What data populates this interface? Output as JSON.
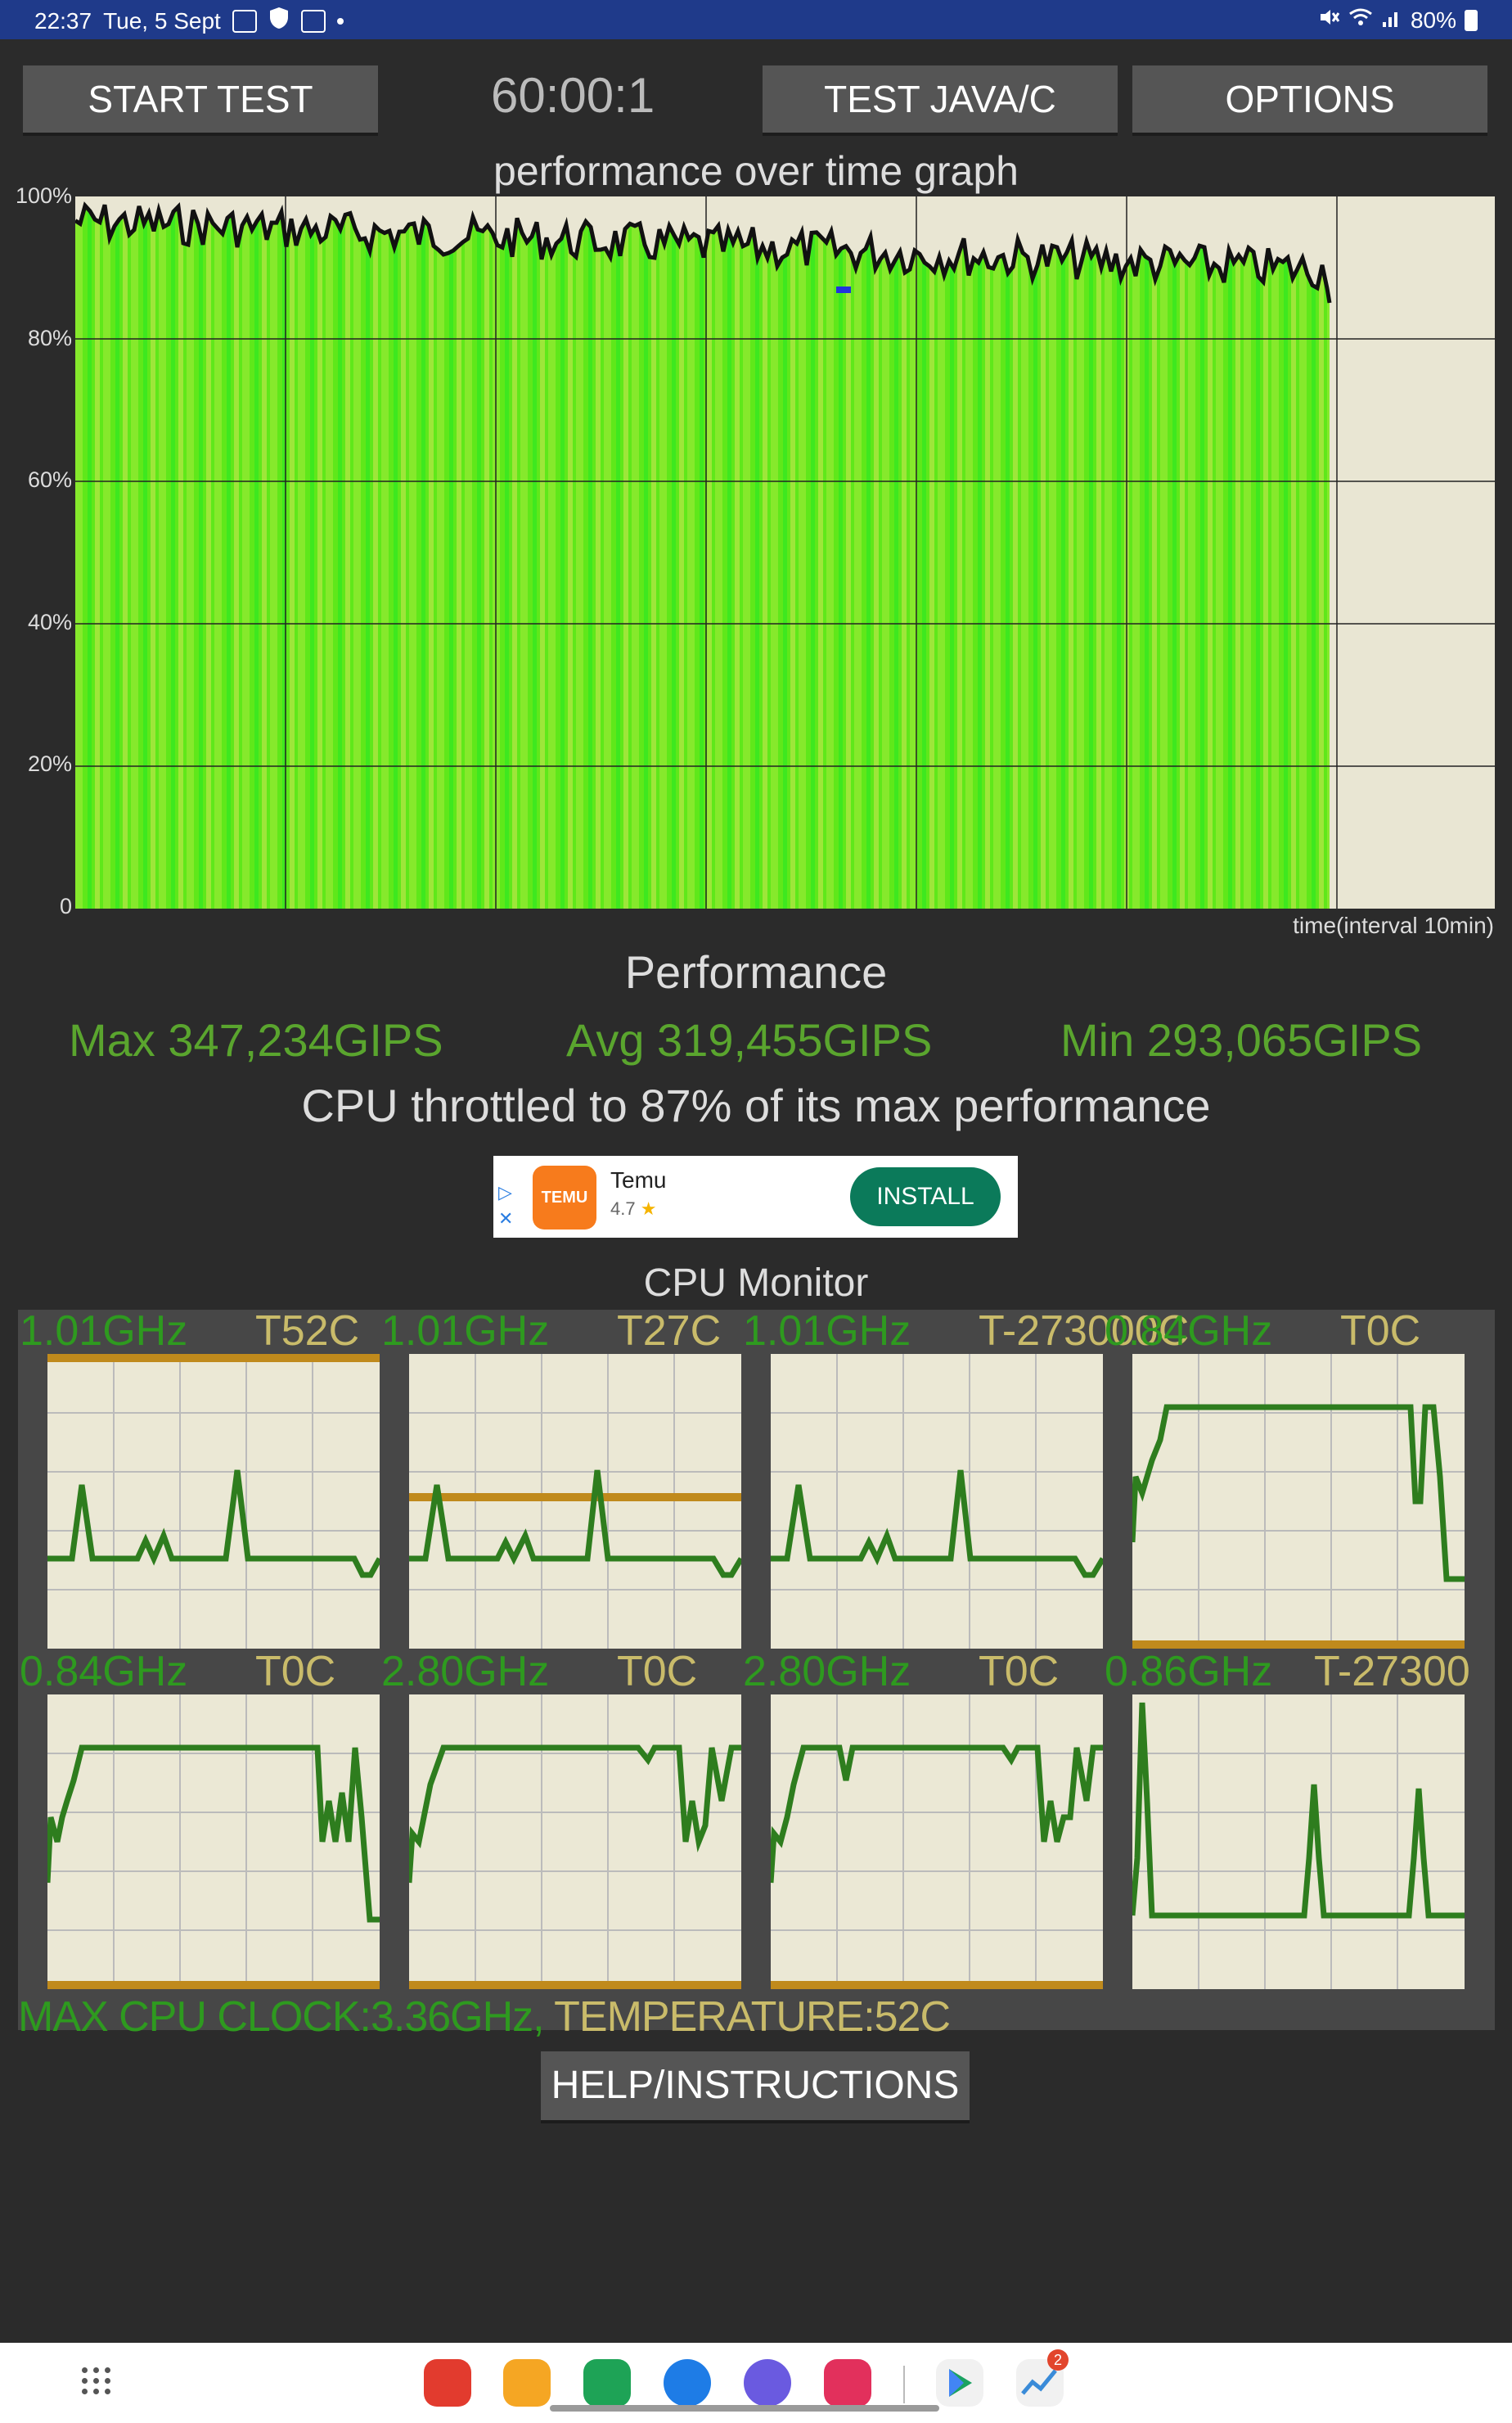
{
  "status_bar": {
    "time": "22:37",
    "date": "Tue, 5 Sept",
    "battery": "80%",
    "icons": [
      "gallery-icon",
      "shield-icon",
      "keyboard-icon",
      "dot-icon",
      "mute-icon",
      "wifi-icon",
      "signal-icon",
      "battery-icon"
    ]
  },
  "toolbar": {
    "start_test": "START TEST",
    "timer": "60:00:1",
    "test_java_c": "TEST JAVA/C",
    "options": "OPTIONS"
  },
  "graph": {
    "title": "performance over time graph",
    "y_labels": [
      "100%",
      "80%",
      "60%",
      "40%",
      "20%",
      "0"
    ],
    "x_caption": "time(interval 10min)"
  },
  "performance": {
    "heading": "Performance",
    "max": "Max 347,234GIPS",
    "avg": "Avg 319,455GIPS",
    "min": "Min 293,065GIPS",
    "throttle": "CPU throttled to 87% of its max performance"
  },
  "ad": {
    "app_name": "Temu",
    "rating": "4.7",
    "star": "★",
    "install": "INSTALL",
    "logo_text": "TEMU"
  },
  "cpu_monitor": {
    "heading": "CPU Monitor",
    "cores": [
      {
        "freq": "1.01GHz",
        "temp": "T52C"
      },
      {
        "freq": "1.01GHz",
        "temp": "T27C"
      },
      {
        "freq": "1.01GHz",
        "temp": "T-273000C"
      },
      {
        "freq": "0.84GHz",
        "temp": "T0C"
      },
      {
        "freq": "0.84GHz",
        "temp": "T0C"
      },
      {
        "freq": "2.80GHz",
        "temp": "T0C"
      },
      {
        "freq": "2.80GHz",
        "temp": "T0C"
      },
      {
        "freq": "0.86GHz",
        "temp": "T-27300"
      }
    ],
    "max_clock": "MAX CPU CLOCK:3.36GHz,",
    "temperature": " TEMPERATURE:52C"
  },
  "help_button": "HELP/INSTRUCTIONS",
  "nav": {
    "apps": [
      "app-drawer-icon",
      "flipboard-icon",
      "files-icon",
      "phone-icon",
      "messages-icon",
      "internet-icon",
      "camera-icon",
      "play-store-icon",
      "stats-icon"
    ],
    "badge_count": "2"
  },
  "colors": {
    "accent_green": "#5aa52e",
    "line_green": "#2e7d1e",
    "temp_gold": "#c9bb6a",
    "status_blue": "#1f3a8a"
  }
}
